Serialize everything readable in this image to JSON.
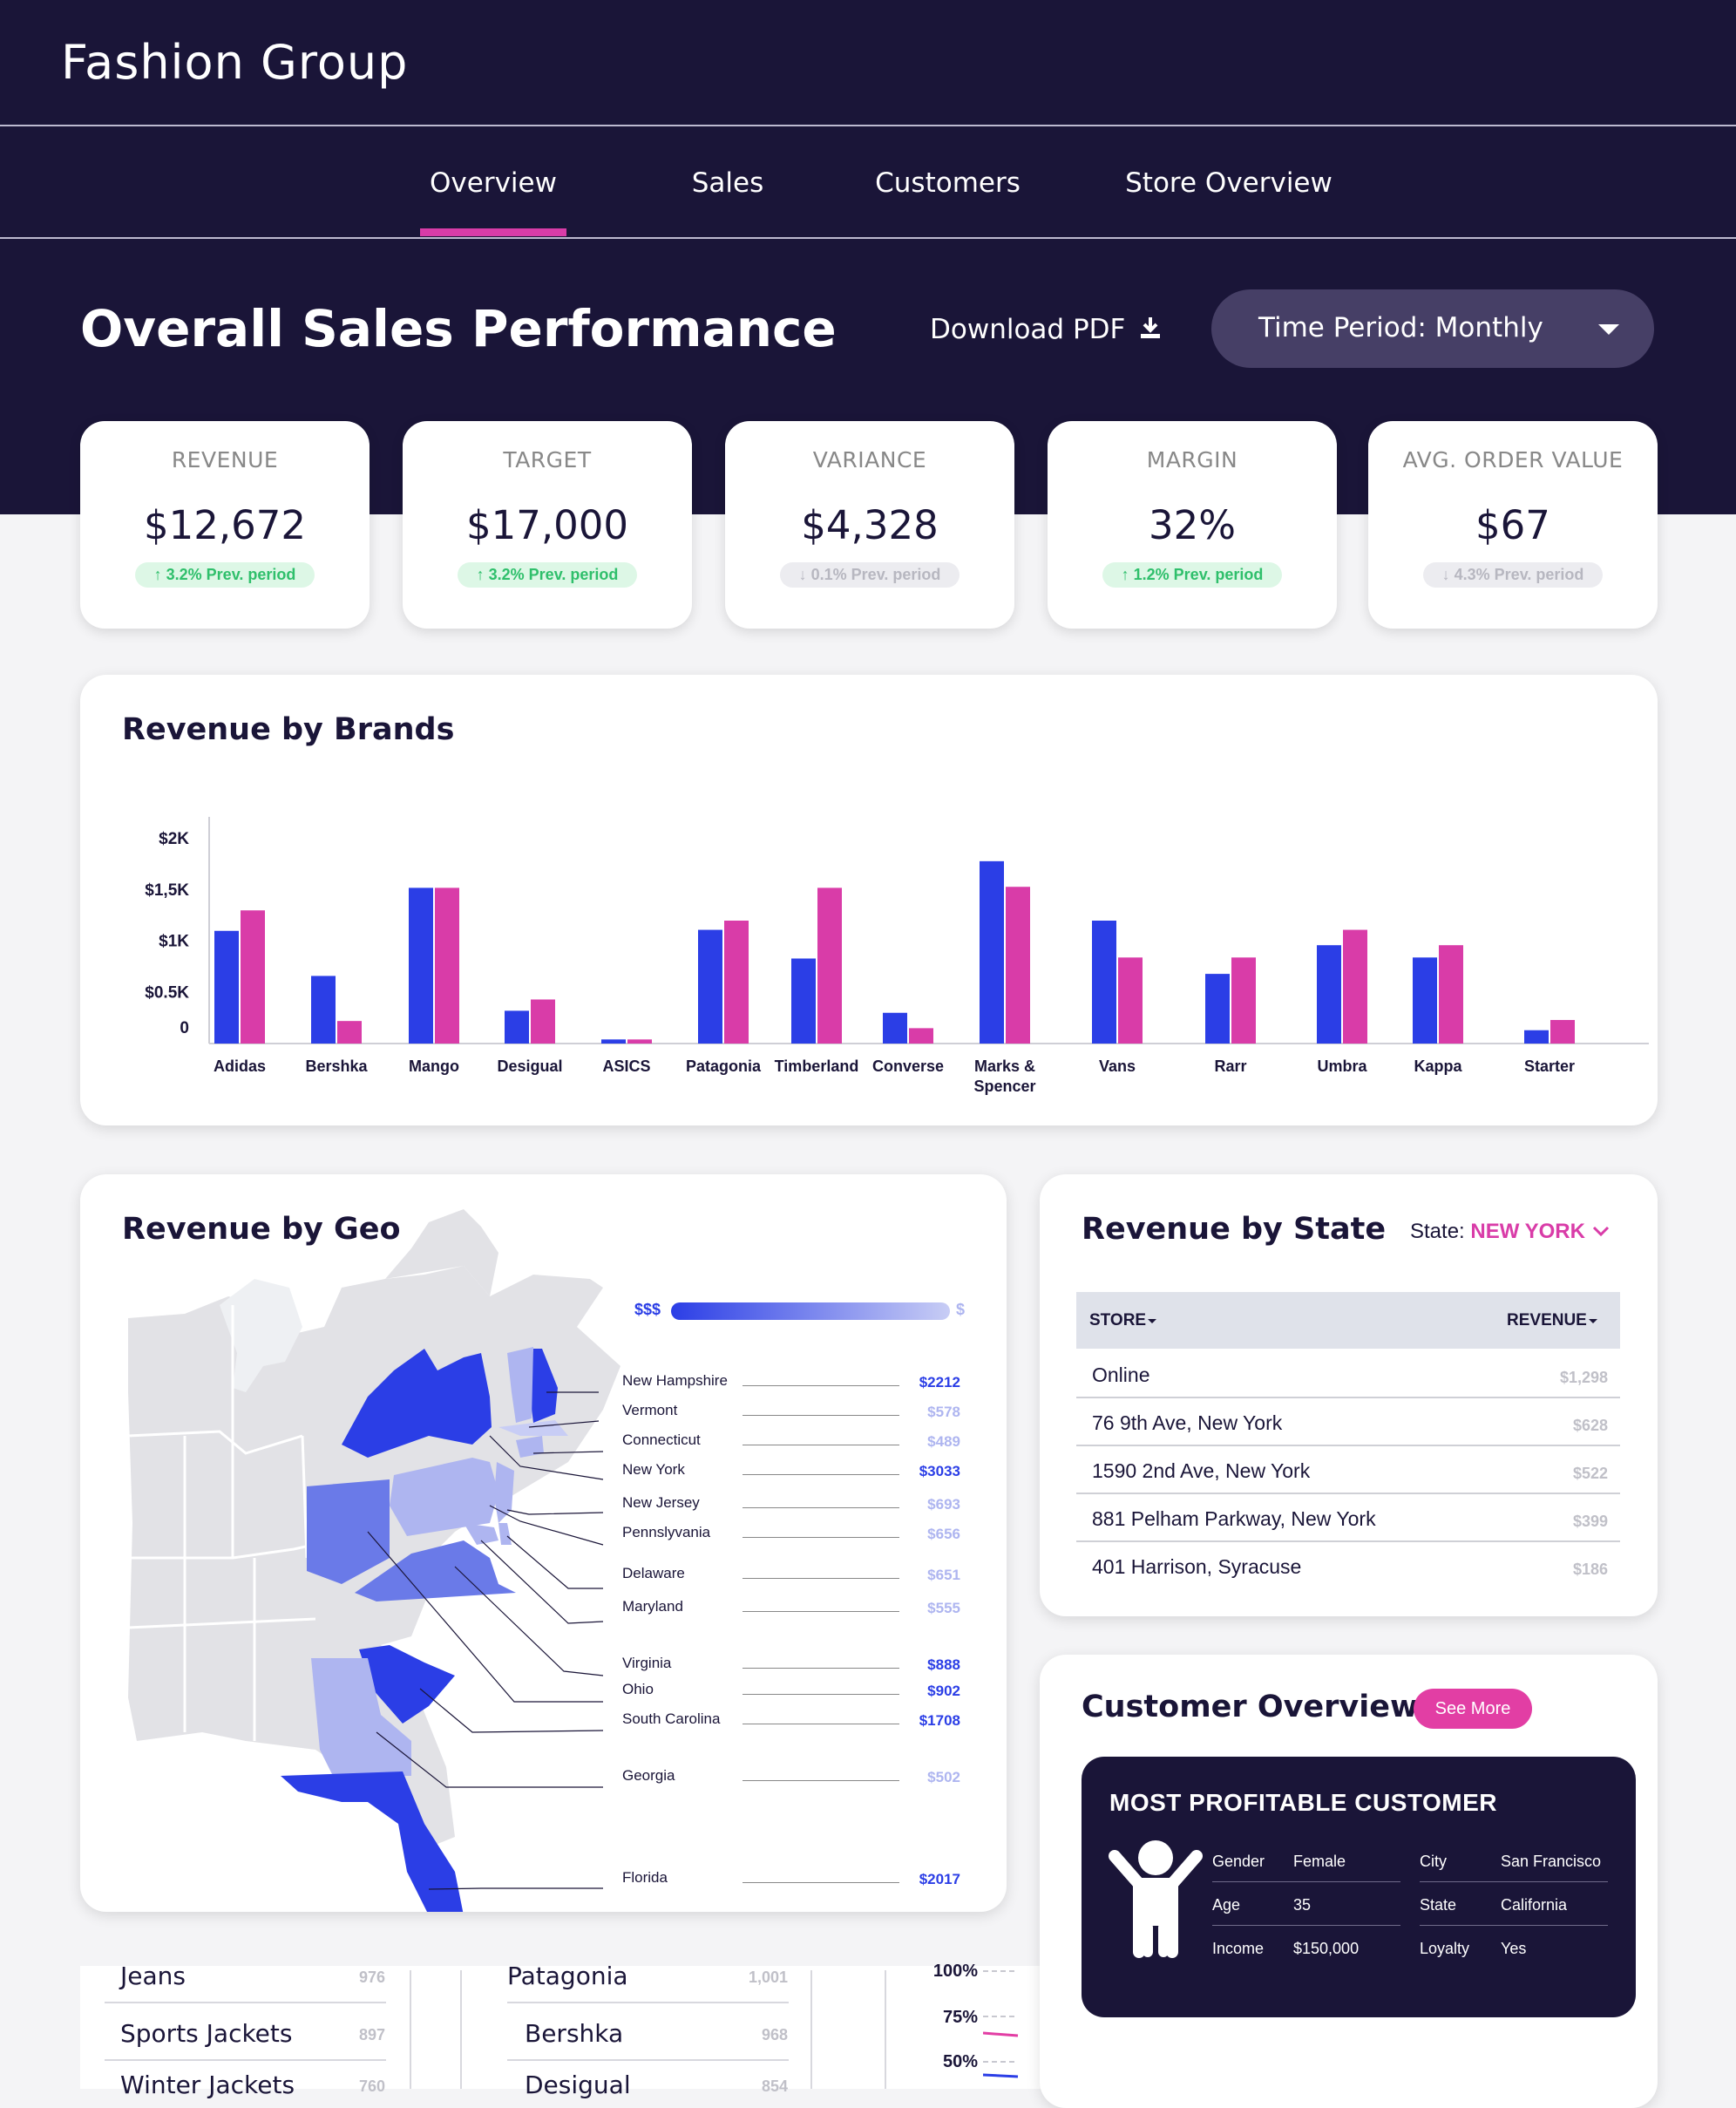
{
  "app": {
    "title": "Fashion Group"
  },
  "nav": {
    "tabs": [
      {
        "label": "Overview",
        "active": true
      },
      {
        "label": "Sales",
        "active": false
      },
      {
        "label": "Customers",
        "active": false
      },
      {
        "label": "Store Overview",
        "active": false
      }
    ]
  },
  "page": {
    "title": "Overall Sales Performance",
    "download_label": "Download PDF",
    "time_period_label": "Time Period: Monthly"
  },
  "colors": {
    "navy": "#1a1538",
    "accent": "#d93ca8",
    "blue": "#2b3ee6",
    "pink": "#d93ca8",
    "up": "#2fbf6b"
  },
  "kpis": [
    {
      "label": "REVENUE",
      "value": "$12,672",
      "change": "3.2% Prev. period",
      "direction": "up"
    },
    {
      "label": "TARGET",
      "value": "$17,000",
      "change": "3.2% Prev. period",
      "direction": "up"
    },
    {
      "label": "VARIANCE",
      "value": "$4,328",
      "change": "0.1% Prev. period",
      "direction": "down"
    },
    {
      "label": "MARGIN",
      "value": "32%",
      "change": "1.2% Prev. period",
      "direction": "up"
    },
    {
      "label": "AVG. ORDER VALUE",
      "value": "$67",
      "change": "4.3% Prev. period",
      "direction": "down"
    }
  ],
  "brands": {
    "title": "Revenue by Brands"
  },
  "chart_data": {
    "type": "bar",
    "title": "Revenue by Brands",
    "categories": [
      "Adidas",
      "Bershka",
      "Mango",
      "Desigual",
      "ASICS",
      "Patagonia",
      "Timberland",
      "Converse",
      "Marks & Spencer",
      "Vans",
      "Rarr",
      "Umbra",
      "Kappa",
      "Starter"
    ],
    "series": [
      {
        "color": "#2b3ee6",
        "values": [
          1100,
          660,
          1520,
          320,
          40,
          1110,
          830,
          300,
          1780,
          1200,
          680,
          960,
          840,
          130
        ]
      },
      {
        "color": "#d93ca8",
        "values": [
          1300,
          220,
          1520,
          430,
          40,
          1200,
          1520,
          150,
          1530,
          840,
          840,
          1110,
          960,
          230
        ]
      }
    ],
    "yticks": [
      "0",
      "$0.5K",
      "$1K",
      "$1,5K",
      "$2K"
    ],
    "ylim": [
      0,
      2000
    ]
  },
  "geo": {
    "title": "Revenue by Geo",
    "legend_high": "$$$",
    "legend_low": "$",
    "states": [
      {
        "name": "New Hampshire",
        "value": "$2212",
        "strong": true
      },
      {
        "name": "Vermont",
        "value": "$578",
        "strong": false
      },
      {
        "name": "Connecticut",
        "value": "$489",
        "strong": false
      },
      {
        "name": "New York",
        "value": "$3033",
        "strong": true
      },
      {
        "name": "New Jersey",
        "value": "$693",
        "strong": false
      },
      {
        "name": "Pennslyvania",
        "value": "$656",
        "strong": false
      },
      {
        "name": "Delaware",
        "value": "$651",
        "strong": false
      },
      {
        "name": "Maryland",
        "value": "$555",
        "strong": false
      },
      {
        "name": "Virginia",
        "value": "$888",
        "strong": true
      },
      {
        "name": "Ohio",
        "value": "$902",
        "strong": true
      },
      {
        "name": "South Carolina",
        "value": "$1708",
        "strong": true
      },
      {
        "name": "Georgia",
        "value": "$502",
        "strong": false
      },
      {
        "name": "Florida",
        "value": "$2017",
        "strong": true
      }
    ]
  },
  "state_table": {
    "title": "Revenue by State",
    "state_label": "State:",
    "state_value": "NEW YORK",
    "col_store": "STORE",
    "col_revenue": "REVENUE",
    "rows": [
      {
        "store": "Online",
        "revenue": "$1,298"
      },
      {
        "store": "76 9th Ave, New York",
        "revenue": "$628"
      },
      {
        "store": "1590 2nd Ave, New York",
        "revenue": "$522"
      },
      {
        "store": "881 Pelham Parkway, New York",
        "revenue": "$399"
      },
      {
        "store": "401 Harrison, Syracuse",
        "revenue": "$186"
      }
    ]
  },
  "customer": {
    "title": "Customer Overview",
    "see_more": "See More",
    "card_title": "MOST PROFITABLE CUSTOMER",
    "fields": {
      "gender_k": "Gender",
      "gender_v": "Female",
      "age_k": "Age",
      "age_v": "35",
      "income_k": "Income",
      "income_v": "$150,000",
      "city_k": "City",
      "city_v": "San Francisco",
      "state_k": "State",
      "state_v": "California",
      "loyalty_k": "Loyalty",
      "loyalty_v": "Yes"
    }
  },
  "lower": {
    "list1": [
      {
        "label": "Jeans",
        "value": "976"
      },
      {
        "label": "Sports Jackets",
        "value": "897"
      },
      {
        "label": "Winter Jackets",
        "value": "760"
      }
    ],
    "list2": [
      {
        "label": "Patagonia",
        "value": "1,001"
      },
      {
        "label": "Bershka",
        "value": "968"
      },
      {
        "label": "Desigual",
        "value": "854"
      }
    ],
    "pct": [
      "100%",
      "75%",
      "50%"
    ]
  }
}
